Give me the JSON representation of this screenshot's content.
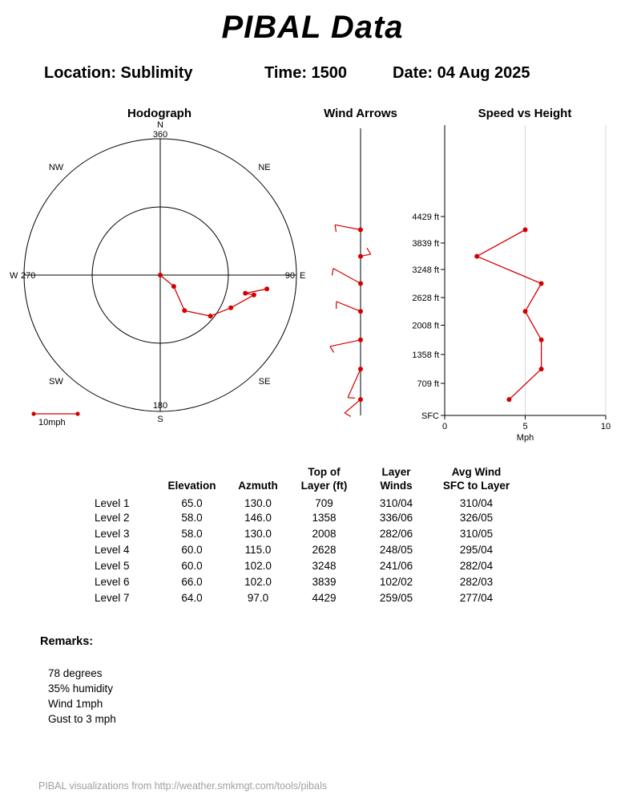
{
  "page": {
    "title": "PIBAL Data",
    "location_label": "Location: Sublimity",
    "time_label": "Time: 1500",
    "date_label": "Date: 04 Aug 2025",
    "footer": "PIBAL visualizations from http://weather.smkmgt.com/tools/pibals"
  },
  "charts": {
    "hodograph": {
      "title": "Hodograph",
      "n": "N",
      "n_deg": "360",
      "e": "E",
      "e_deg": "90",
      "s": "S",
      "s_deg": "180",
      "w": "W",
      "w_deg": "270",
      "ne": "NE",
      "nw": "NW",
      "se": "SE",
      "sw": "SW",
      "legend": "10mph"
    },
    "wind_arrows": {
      "title": "Wind Arrows"
    },
    "speed_height": {
      "title": "Speed vs Height",
      "xlabel": "Mph",
      "x_ticks": [
        "0",
        "5",
        "10"
      ],
      "sfc_label": "SFC",
      "height_labels": [
        "4429 ft",
        "3839 ft",
        "3248 ft",
        "2628 ft",
        "2008 ft",
        "1358 ft",
        "709 ft"
      ]
    },
    "colors": {
      "data_red": "#d40000",
      "grid_gray": "#d8d8d8"
    }
  },
  "chart_data": [
    {
      "type": "line",
      "subtype": "hodograph",
      "title": "Hodograph",
      "units": "mph",
      "legend_scale_mph": 10,
      "compass": [
        "N",
        "NE",
        "E",
        "SE",
        "S",
        "SW",
        "W",
        "NW"
      ],
      "degree_ring_labels": [
        360,
        90,
        180,
        270
      ],
      "layer_winds_dir_speed": [
        [
          310,
          4
        ],
        [
          336,
          6
        ],
        [
          282,
          6
        ],
        [
          248,
          5
        ],
        [
          241,
          6
        ],
        [
          102,
          2
        ],
        [
          259,
          5
        ]
      ],
      "note": "red trace = cumulative layer wind vectors from surface upward"
    },
    {
      "type": "scatter",
      "subtype": "wind-barbs",
      "title": "Wind Arrows",
      "heights_mid_ft": [
        354.5,
        1033.5,
        1683,
        2318,
        2938,
        3543.5,
        4134
      ],
      "dir_speed": [
        [
          310,
          4
        ],
        [
          336,
          6
        ],
        [
          282,
          6
        ],
        [
          248,
          5
        ],
        [
          241,
          6
        ],
        [
          102,
          2
        ],
        [
          259,
          5
        ]
      ]
    },
    {
      "type": "line",
      "subtype": "speed-profile",
      "title": "Speed vs Height",
      "xlabel": "Mph",
      "xlim": [
        0,
        10
      ],
      "x_ticks": [
        0,
        5,
        10
      ],
      "y_ticks_ft": [
        0,
        709,
        1358,
        2008,
        2628,
        3248,
        3839,
        4429
      ],
      "y_tick_labels": [
        "SFC",
        "709 ft",
        "1358 ft",
        "2008 ft",
        "2628 ft",
        "3248 ft",
        "3839 ft",
        "4429 ft"
      ],
      "ymax_ft": 4429,
      "series": [
        {
          "name": "layer wind speed (mph)",
          "x_mph": [
            4,
            6,
            6,
            5,
            6,
            2,
            5
          ],
          "y_ft": [
            354.5,
            1033.5,
            1683,
            2318,
            2938,
            3543.5,
            4134
          ]
        }
      ]
    }
  ],
  "table": {
    "headers": [
      [
        "",
        ""
      ],
      [
        "",
        "Elevation"
      ],
      [
        "",
        "Azmuth"
      ],
      [
        "Top of",
        "Layer (ft)"
      ],
      [
        "Layer",
        "Winds"
      ],
      [
        "Avg Wind",
        "SFC to Layer"
      ]
    ],
    "rows": [
      [
        "Level 1",
        "65.0",
        "130.0",
        "709",
        "310/04",
        "310/04"
      ],
      [
        "Level 2",
        "58.0",
        "146.0",
        "1358",
        "336/06",
        "326/05"
      ],
      [
        "Level 3",
        "58.0",
        "130.0",
        "2008",
        "282/06",
        "310/05"
      ],
      [
        "Level 4",
        "60.0",
        "115.0",
        "2628",
        "248/05",
        "295/04"
      ],
      [
        "Level 5",
        "60.0",
        "102.0",
        "3248",
        "241/06",
        "282/04"
      ],
      [
        "Level 6",
        "66.0",
        "102.0",
        "3839",
        "102/02",
        "282/03"
      ],
      [
        "Level 7",
        "64.0",
        "97.0",
        "4429",
        "259/05",
        "277/04"
      ]
    ]
  },
  "remarks": {
    "heading": "Remarks:",
    "items": [
      "78 degrees",
      "35% humidity",
      "Wind 1mph",
      "Gust to 3 mph"
    ]
  }
}
